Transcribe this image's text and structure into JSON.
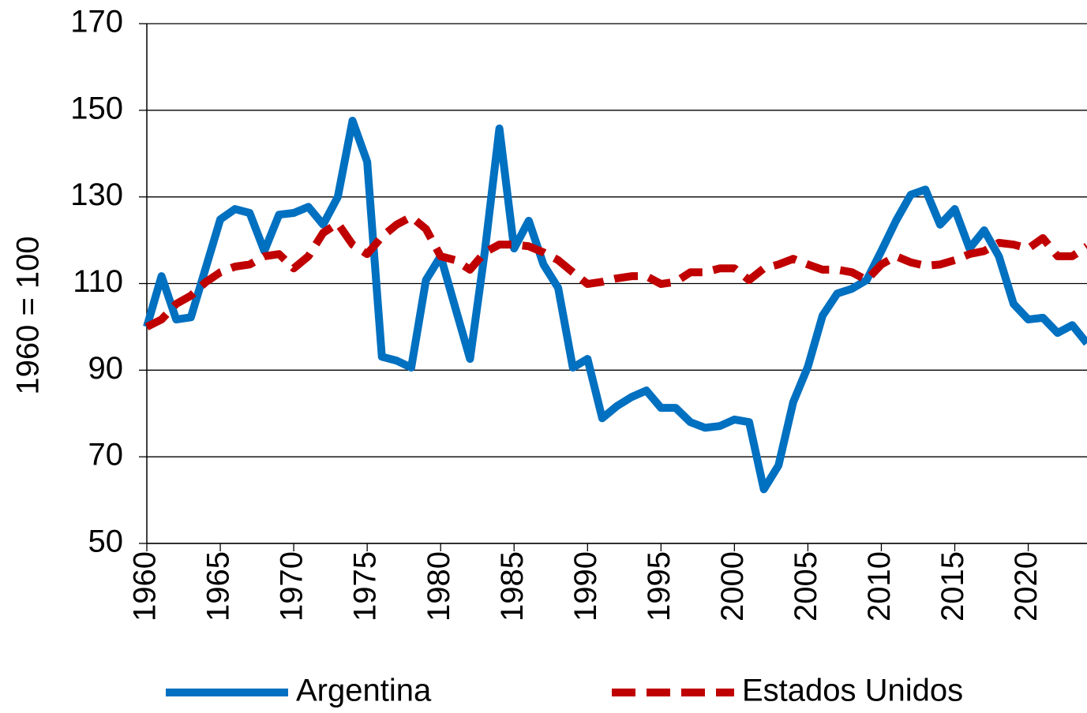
{
  "chart_data": {
    "type": "line",
    "y_label": "1960 = 100",
    "x": [
      1960,
      1961,
      1962,
      1963,
      1964,
      1965,
      1966,
      1967,
      1968,
      1969,
      1970,
      1971,
      1972,
      1973,
      1974,
      1975,
      1976,
      1977,
      1978,
      1979,
      1980,
      1981,
      1982,
      1983,
      1984,
      1985,
      1986,
      1987,
      1988,
      1989,
      1990,
      1991,
      1992,
      1993,
      1994,
      1995,
      1996,
      1997,
      1998,
      1999,
      2000,
      2001,
      2002,
      2003,
      2004,
      2005,
      2006,
      2007,
      2008,
      2009,
      2010,
      2011,
      2012,
      2013,
      2014,
      2015,
      2016,
      2017,
      2018,
      2019,
      2020,
      2021,
      2022,
      2023,
      2024
    ],
    "series": [
      {
        "name": "Argentina",
        "color": "#0070c0",
        "dashed": false,
        "values": [
          100,
          111.7,
          101.7,
          102.2,
          113.5,
          124.8,
          127.2,
          126.3,
          117.5,
          125.9,
          126.3,
          127.7,
          123.6,
          130,
          147.6,
          138.1,
          93.1,
          92.2,
          90.6,
          110.8,
          116.3,
          104.4,
          92.6,
          117.2,
          145.8,
          118.1,
          124.5,
          114.4,
          109,
          90.6,
          92.6,
          78.9,
          81.7,
          83.8,
          85.3,
          81.3,
          81.3,
          78,
          76.7,
          77.1,
          78.6,
          78,
          62.5,
          68,
          82.6,
          90.8,
          102.6,
          107.7,
          108.8,
          110.8,
          117.5,
          124.5,
          130.5,
          131.7,
          123.6,
          127.2,
          118.1,
          122.3,
          116.3,
          105.3,
          101.7,
          102.1,
          98.6,
          100.4,
          96.2
        ]
      },
      {
        "name": "Estados Unidos",
        "color": "#c00000",
        "dashed": true,
        "values": [
          100,
          101.7,
          105.3,
          107.2,
          110.3,
          112.6,
          113.9,
          114.4,
          116.3,
          116.8,
          113.5,
          116.3,
          121.7,
          123.9,
          119,
          116.8,
          120.8,
          123.6,
          125.4,
          122.6,
          116.3,
          115.4,
          113.2,
          117.2,
          119,
          119,
          118.6,
          117.2,
          115.4,
          112.6,
          109.9,
          110.4,
          111.2,
          111.7,
          111.7,
          109.9,
          110.4,
          112.6,
          112.6,
          113.5,
          113.5,
          110.8,
          113.5,
          114.4,
          115.7,
          114.4,
          113.2,
          113.2,
          112.6,
          110.8,
          114.4,
          116.3,
          114.9,
          114.1,
          114.4,
          115.4,
          116.8,
          117.5,
          119.4,
          119,
          118.1,
          120.5,
          116.3,
          116.3,
          118.6
        ]
      }
    ],
    "xlim": [
      1960,
      2024
    ],
    "xticks": [
      1960,
      1965,
      1970,
      1975,
      1980,
      1985,
      1990,
      1995,
      2000,
      2005,
      2010,
      2015,
      2020
    ],
    "ylim": [
      50,
      170
    ],
    "yticks": [
      50,
      70,
      90,
      110,
      130,
      150,
      170
    ],
    "grid": true,
    "legend": "bottom"
  }
}
